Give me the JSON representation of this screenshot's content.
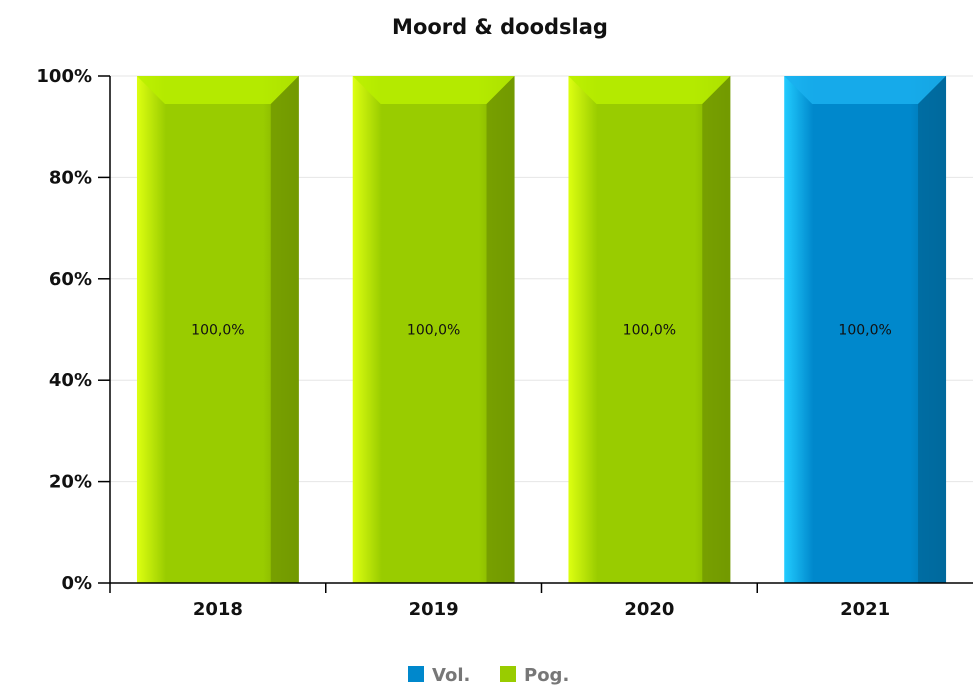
{
  "chart_data": {
    "type": "bar",
    "title": "Moord & doodslag",
    "categories": [
      "2018",
      "2019",
      "2020",
      "2021"
    ],
    "values": [
      100.0,
      100.0,
      100.0,
      100.0
    ],
    "data_labels": [
      "100,0%",
      "100,0%",
      "100,0%",
      "100,0%"
    ],
    "bar_series": [
      "Pog.",
      "Pog.",
      "Pog.",
      "Vol."
    ],
    "ylim": [
      0,
      100
    ],
    "yticks": [
      0,
      20,
      40,
      60,
      80,
      100
    ],
    "ytick_labels": [
      "0%",
      "20%",
      "40%",
      "60%",
      "80%",
      "100%"
    ],
    "grid": true,
    "legend_position": "bottom-center",
    "legend": [
      {
        "name": "Vol.",
        "color": "#0088cc"
      },
      {
        "name": "Pog.",
        "color": "#99cc00"
      }
    ]
  }
}
